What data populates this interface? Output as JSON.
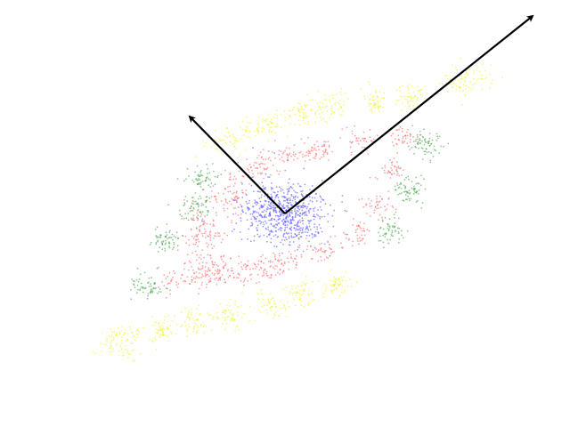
{
  "chart_data": {
    "type": "scatter",
    "title": "",
    "xlabel": "",
    "ylabel": "",
    "axes_visible": false,
    "grid": false,
    "legend": "none",
    "colors": {
      "blue": "#4a4aff",
      "red": "#ff5a5a",
      "green": "#3c9a3c",
      "yellow": "#f2f21e",
      "arrow": "#000000"
    },
    "clusters": [
      {
        "color": "blue",
        "center": [
          320,
          240
        ],
        "radii": [
          42,
          32
        ],
        "rotation": 0,
        "count": 650
      },
      {
        "color": "red",
        "center": [
          325,
          173
        ],
        "radii": [
          30,
          10
        ],
        "rotation": -5,
        "count": 55
      },
      {
        "color": "red",
        "center": [
          360,
          168
        ],
        "radii": [
          22,
          10
        ],
        "rotation": 0,
        "count": 40
      },
      {
        "color": "red",
        "center": [
          405,
          158
        ],
        "radii": [
          18,
          12
        ],
        "rotation": 0,
        "count": 40
      },
      {
        "color": "red",
        "center": [
          452,
          152
        ],
        "radii": [
          16,
          12
        ],
        "rotation": 0,
        "count": 40
      },
      {
        "color": "red",
        "center": [
          438,
          192
        ],
        "radii": [
          16,
          14
        ],
        "rotation": 0,
        "count": 40
      },
      {
        "color": "red",
        "center": [
          425,
          233
        ],
        "radii": [
          16,
          16
        ],
        "rotation": 0,
        "count": 45
      },
      {
        "color": "red",
        "center": [
          403,
          263
        ],
        "radii": [
          16,
          14
        ],
        "rotation": 0,
        "count": 40
      },
      {
        "color": "red",
        "center": [
          362,
          280
        ],
        "radii": [
          18,
          14
        ],
        "rotation": 0,
        "count": 45
      },
      {
        "color": "red",
        "center": [
          300,
          300
        ],
        "radii": [
          45,
          14
        ],
        "rotation": -10,
        "count": 110
      },
      {
        "color": "red",
        "center": [
          232,
          308
        ],
        "radii": [
          45,
          16
        ],
        "rotation": -15,
        "count": 150
      },
      {
        "color": "red",
        "center": [
          228,
          265
        ],
        "radii": [
          22,
          30
        ],
        "rotation": 0,
        "count": 110
      },
      {
        "color": "red",
        "center": [
          258,
          220
        ],
        "radii": [
          22,
          22
        ],
        "rotation": 0,
        "count": 70
      },
      {
        "color": "red",
        "center": [
          290,
          190
        ],
        "radii": [
          25,
          15
        ],
        "rotation": -20,
        "count": 55
      },
      {
        "color": "green",
        "center": [
          478,
          162
        ],
        "radii": [
          16,
          14
        ],
        "rotation": 0,
        "count": 70
      },
      {
        "color": "green",
        "center": [
          460,
          212
        ],
        "radii": [
          16,
          16
        ],
        "rotation": 0,
        "count": 70
      },
      {
        "color": "green",
        "center": [
          438,
          260
        ],
        "radii": [
          14,
          14
        ],
        "rotation": 0,
        "count": 55
      },
      {
        "color": "green",
        "center": [
          226,
          203
        ],
        "radii": [
          16,
          14
        ],
        "rotation": 0,
        "count": 60
      },
      {
        "color": "green",
        "center": [
          220,
          234
        ],
        "radii": [
          16,
          14
        ],
        "rotation": 0,
        "count": 60
      },
      {
        "color": "green",
        "center": [
          186,
          270
        ],
        "radii": [
          16,
          14
        ],
        "rotation": 0,
        "count": 60
      },
      {
        "color": "green",
        "center": [
          165,
          322
        ],
        "radii": [
          16,
          14
        ],
        "rotation": 0,
        "count": 60
      },
      {
        "color": "yellow",
        "center": [
          525,
          90
        ],
        "radii": [
          24,
          16
        ],
        "rotation": -20,
        "count": 80
      },
      {
        "color": "yellow",
        "center": [
          462,
          110
        ],
        "radii": [
          16,
          14
        ],
        "rotation": 0,
        "count": 55
      },
      {
        "color": "yellow",
        "center": [
          420,
          113
        ],
        "radii": [
          16,
          14
        ],
        "rotation": 0,
        "count": 55
      },
      {
        "color": "yellow",
        "center": [
          372,
          120
        ],
        "radii": [
          18,
          14
        ],
        "rotation": 0,
        "count": 60
      },
      {
        "color": "yellow",
        "center": [
          340,
          128
        ],
        "radii": [
          16,
          14
        ],
        "rotation": 0,
        "count": 55
      },
      {
        "color": "yellow",
        "center": [
          298,
          140
        ],
        "radii": [
          28,
          12
        ],
        "rotation": -15,
        "count": 65
      },
      {
        "color": "yellow",
        "center": [
          255,
          160
        ],
        "radii": [
          22,
          12
        ],
        "rotation": -20,
        "count": 50
      },
      {
        "color": "yellow",
        "center": [
          378,
          318
        ],
        "radii": [
          18,
          14
        ],
        "rotation": 0,
        "count": 55
      },
      {
        "color": "yellow",
        "center": [
          340,
          330
        ],
        "radii": [
          18,
          14
        ],
        "rotation": 0,
        "count": 55
      },
      {
        "color": "yellow",
        "center": [
          302,
          342
        ],
        "radii": [
          18,
          14
        ],
        "rotation": 0,
        "count": 55
      },
      {
        "color": "yellow",
        "center": [
          258,
          355
        ],
        "radii": [
          18,
          14
        ],
        "rotation": 0,
        "count": 55
      },
      {
        "color": "yellow",
        "center": [
          218,
          362
        ],
        "radii": [
          18,
          14
        ],
        "rotation": 0,
        "count": 55
      },
      {
        "color": "yellow",
        "center": [
          182,
          370
        ],
        "radii": [
          18,
          14
        ],
        "rotation": 0,
        "count": 55
      },
      {
        "color": "yellow",
        "center": [
          138,
          383
        ],
        "radii": [
          30,
          18
        ],
        "rotation": -20,
        "count": 90
      }
    ],
    "vectors": [
      {
        "from": [
          320,
          240
        ],
        "to": [
          598,
          18
        ]
      },
      {
        "from": [
          320,
          240
        ],
        "to": [
          213,
          131
        ]
      }
    ]
  }
}
